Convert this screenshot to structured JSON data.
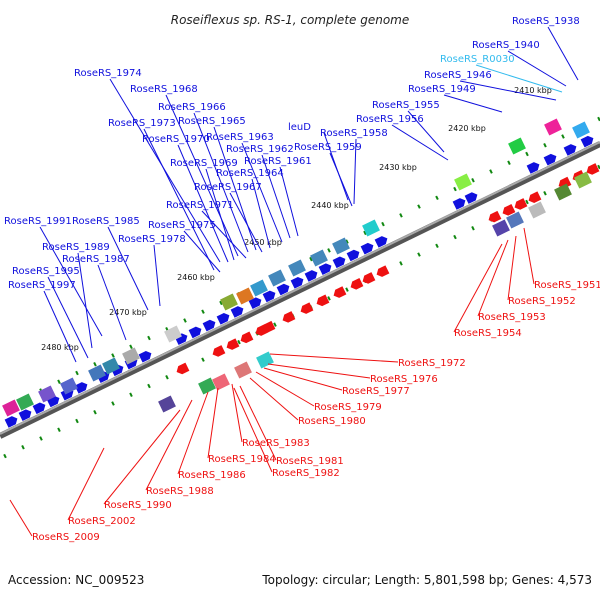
{
  "title": "Roseiflexus sp. RS-1, complete genome",
  "footer": {
    "accession": "Accession: NC_009523",
    "summary": "Topology: circular; Length: 5,801,598 bp; Genes: 4,573"
  },
  "colors": {
    "forward": "#1010dd",
    "reverse": "#ee1111",
    "rna": "#33bbee",
    "backbone": "#888888",
    "tick": "#118811"
  },
  "scale_marks": [
    "2410 kbp",
    "2420 kbp",
    "2430 kbp",
    "2440 kbp",
    "2450 kbp",
    "2460 kbp",
    "2470 kbp",
    "2480 kbp"
  ],
  "forward_labels": [
    "RoseRS_1938",
    "RoseRS_1940",
    "RoseRS_R0030",
    "RoseRS_1946",
    "RoseRS_1949",
    "RoseRS_1955",
    "RoseRS_1956",
    "RoseRS_1974",
    "RoseRS_1968",
    "RoseRS_1966",
    "RoseRS_1973",
    "RoseRS_1965",
    "RoseRS_1970",
    "RoseRS_1963",
    "leuD",
    "RoseRS_1958",
    "RoseRS_1962",
    "RoseRS_1959",
    "RoseRS_1969",
    "RoseRS_1961",
    "RoseRS_1964",
    "RoseRS_1967",
    "RoseRS_1971",
    "RoseRS_1975",
    "RoseRS_1991",
    "RoseRS_1985",
    "RoseRS_1978",
    "RoseRS_1989",
    "RoseRS_1987",
    "RoseRS_1995",
    "RoseRS_1997"
  ],
  "reverse_labels": [
    "RoseRS_1951",
    "RoseRS_1952",
    "RoseRS_1953",
    "RoseRS_1954",
    "RoseRS_1972",
    "RoseRS_1976",
    "RoseRS_1977",
    "RoseRS_1979",
    "RoseRS_1980",
    "RoseRS_1983",
    "RoseRS_1984",
    "RoseRS_1981",
    "RoseRS_1986",
    "RoseRS_1982",
    "RoseRS_1988",
    "RoseRS_1990",
    "RoseRS_2002",
    "RoseRS_2009"
  ]
}
